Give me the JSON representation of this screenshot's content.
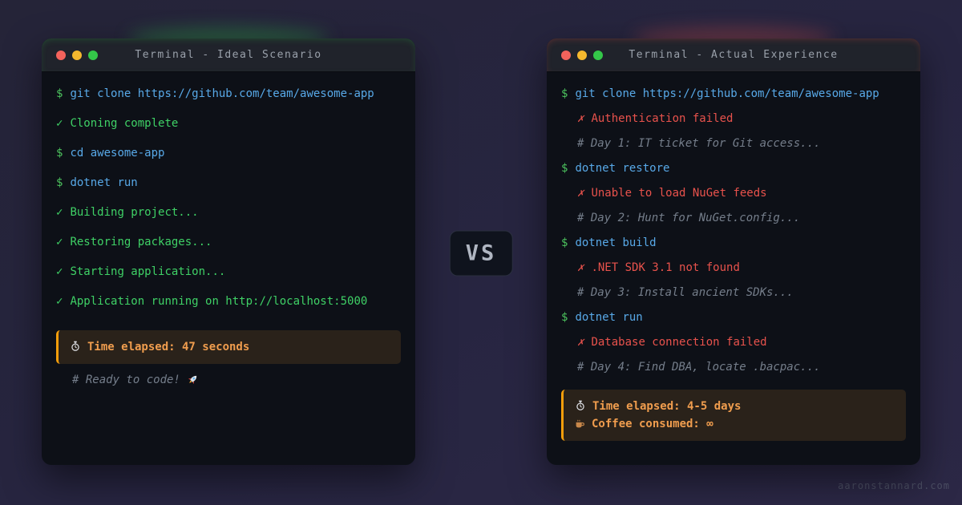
{
  "page": {
    "vs_label": "VS",
    "watermark": "aaronstannard.com"
  },
  "colors": {
    "background": "#272541",
    "terminal_bg": "#0d1017",
    "titlebar_bg": "#20232b",
    "prompt_green": "#4cc35e",
    "success_green": "#3fd166",
    "command_blue": "#58a9e8",
    "error_red": "#e8524c",
    "comment_gray": "#757e8b",
    "accent_orange": "#f59e0b",
    "summary_text_orange": "#f09d4e",
    "ideal_glow": "#2ea043",
    "actual_glow": "#e5534b",
    "traffic_red": "#f4635c",
    "traffic_yellow": "#f5b82e",
    "traffic_green": "#34c749"
  },
  "left_terminal": {
    "title": "Terminal - Ideal Scenario",
    "lines": [
      {
        "type": "cmd",
        "prompt": "$",
        "text": "git clone https://github.com/team/awesome-app"
      },
      {
        "type": "ok",
        "icon": "check",
        "text": "Cloning complete"
      },
      {
        "type": "cmd",
        "prompt": "$",
        "text": "cd awesome-app"
      },
      {
        "type": "cmd",
        "prompt": "$",
        "text": "dotnet run"
      },
      {
        "type": "ok",
        "icon": "check",
        "text": "Building project..."
      },
      {
        "type": "ok",
        "icon": "check",
        "text": "Restoring packages..."
      },
      {
        "type": "ok",
        "icon": "check",
        "text": "Starting application..."
      },
      {
        "type": "ok",
        "icon": "check",
        "text": "Application running on http://localhost:5000"
      }
    ],
    "summary_lines": [
      {
        "type": "summary",
        "icon": "stopwatch",
        "text": "Time elapsed: 47 seconds"
      }
    ],
    "footer_lines": [
      {
        "type": "comment",
        "text": "# Ready to code!",
        "trailing_icon": "rocket"
      }
    ]
  },
  "right_terminal": {
    "title": "Terminal - Actual Experience",
    "lines": [
      {
        "type": "cmd",
        "prompt": "$",
        "text": "git clone https://github.com/team/awesome-app"
      },
      {
        "type": "err",
        "icon": "cross",
        "text": "Authentication failed"
      },
      {
        "type": "comment",
        "text": "# Day 1: IT ticket for Git access..."
      },
      {
        "type": "cmd",
        "prompt": "$",
        "text": "dotnet restore"
      },
      {
        "type": "err",
        "icon": "cross",
        "text": "Unable to load NuGet feeds"
      },
      {
        "type": "comment",
        "text": "# Day 2: Hunt for NuGet.config..."
      },
      {
        "type": "cmd",
        "prompt": "$",
        "text": "dotnet build"
      },
      {
        "type": "err",
        "icon": "cross",
        "text": ".NET SDK 3.1 not found"
      },
      {
        "type": "comment",
        "text": "# Day 3: Install ancient SDKs..."
      },
      {
        "type": "cmd",
        "prompt": "$",
        "text": "dotnet run"
      },
      {
        "type": "err",
        "icon": "cross",
        "text": "Database connection failed"
      },
      {
        "type": "comment",
        "text": "# Day 4: Find DBA, locate .bacpac..."
      }
    ],
    "summary_lines": [
      {
        "type": "summary",
        "icon": "stopwatch",
        "text": "Time elapsed: 4-5 days"
      },
      {
        "type": "summary",
        "icon": "coffee",
        "text": "Coffee consumed: ∞"
      }
    ]
  }
}
